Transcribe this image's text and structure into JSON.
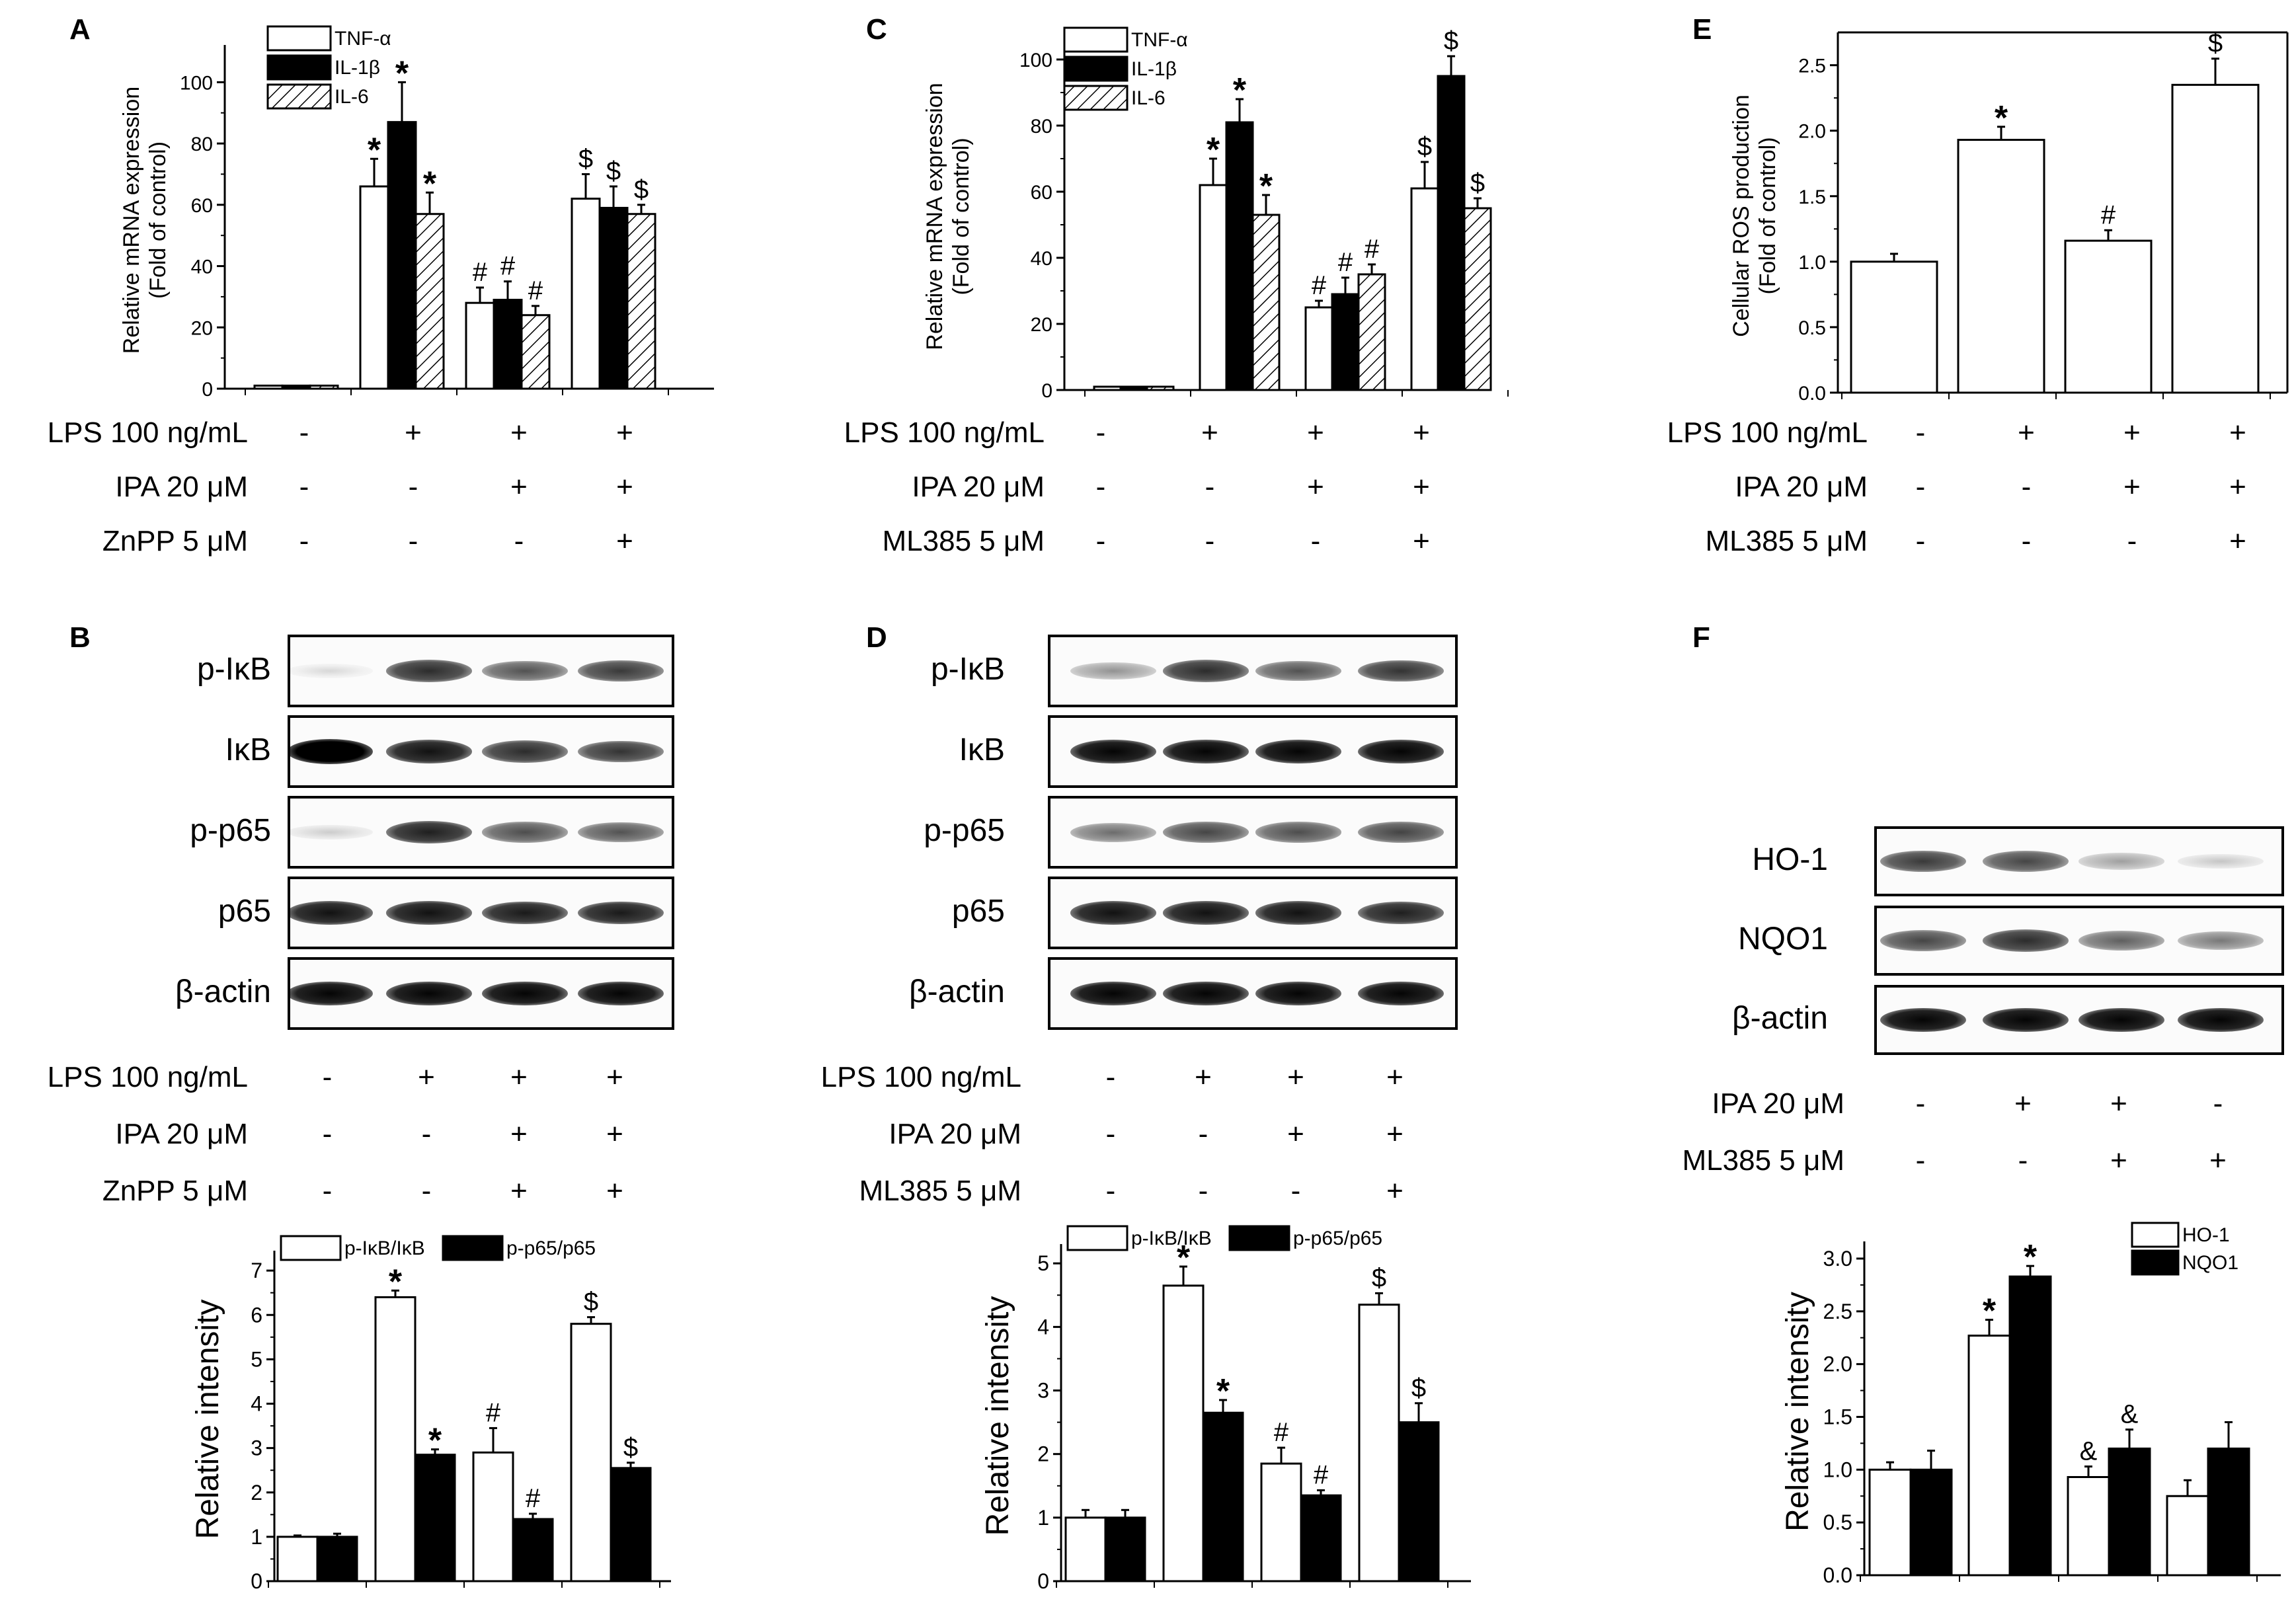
{
  "figure": {
    "panels": {
      "A": {
        "label": "A"
      },
      "B": {
        "label": "B"
      },
      "C": {
        "label": "C"
      },
      "D": {
        "label": "D"
      },
      "E": {
        "label": "E"
      },
      "F": {
        "label": "F"
      }
    }
  },
  "treatments": {
    "A": {
      "rows": [
        {
          "label": "LPS 100 ng/mL",
          "signs": [
            "-",
            "+",
            "+",
            "+"
          ]
        },
        {
          "label": "IPA 20 μM",
          "signs": [
            "-",
            "-",
            "+",
            "+"
          ]
        },
        {
          "label": "ZnPP 5 μM",
          "signs": [
            "-",
            "-",
            "-",
            "+"
          ]
        }
      ]
    },
    "C": {
      "rows": [
        {
          "label": "LPS 100 ng/mL",
          "signs": [
            "-",
            "+",
            "+",
            "+"
          ]
        },
        {
          "label": "IPA 20 μM",
          "signs": [
            "-",
            "-",
            "+",
            "+"
          ]
        },
        {
          "label": "ML385 5 μM",
          "signs": [
            "-",
            "-",
            "-",
            "+"
          ]
        }
      ]
    },
    "E": {
      "rows": [
        {
          "label": "LPS 100 ng/mL",
          "signs": [
            "-",
            "+",
            "+",
            "+"
          ]
        },
        {
          "label": "IPA 20 μM",
          "signs": [
            "-",
            "-",
            "+",
            "+"
          ]
        },
        {
          "label": "ML385 5 μM",
          "signs": [
            "-",
            "-",
            "-",
            "+"
          ]
        }
      ]
    },
    "B": {
      "rows": [
        {
          "label": "LPS 100 ng/mL",
          "signs": [
            "-",
            "+",
            "+",
            "+"
          ]
        },
        {
          "label": "IPA 20 μM",
          "signs": [
            "-",
            "-",
            "+",
            "+"
          ]
        },
        {
          "label": "ZnPP 5 μM",
          "signs": [
            "-",
            "-",
            "+",
            "+"
          ]
        }
      ]
    },
    "D": {
      "rows": [
        {
          "label": "LPS 100 ng/mL",
          "signs": [
            "-",
            "+",
            "+",
            "+"
          ]
        },
        {
          "label": "IPA 20 μM",
          "signs": [
            "-",
            "-",
            "+",
            "+"
          ]
        },
        {
          "label": "ML385 5 μM",
          "signs": [
            "-",
            "-",
            "-",
            "+"
          ]
        }
      ]
    },
    "F": {
      "rows": [
        {
          "label": "IPA 20 μM",
          "signs": [
            "-",
            "+",
            "+",
            "-"
          ]
        },
        {
          "label": "ML385 5 μM",
          "signs": [
            "-",
            "-",
            "+",
            "+"
          ]
        }
      ]
    }
  },
  "blots": {
    "B": {
      "rows": [
        {
          "label": "p-IκB",
          "intensity": [
            0.08,
            0.75,
            0.6,
            0.7
          ]
        },
        {
          "label": "IκB",
          "intensity": [
            1.0,
            0.85,
            0.75,
            0.72
          ]
        },
        {
          "label": "p-p65",
          "intensity": [
            0.12,
            0.8,
            0.62,
            0.6
          ]
        },
        {
          "label": "p65",
          "intensity": [
            0.85,
            0.85,
            0.82,
            0.82
          ]
        },
        {
          "label": "β-actin",
          "intensity": [
            0.9,
            0.9,
            0.9,
            0.9
          ]
        }
      ]
    },
    "D": {
      "rows": [
        {
          "label": "p-IκB",
          "intensity": [
            0.35,
            0.75,
            0.6,
            0.72
          ]
        },
        {
          "label": "IκB",
          "intensity": [
            0.9,
            0.9,
            0.9,
            0.9
          ]
        },
        {
          "label": "p-p65",
          "intensity": [
            0.5,
            0.65,
            0.62,
            0.66
          ]
        },
        {
          "label": "p65",
          "intensity": [
            0.85,
            0.85,
            0.85,
            0.8
          ]
        },
        {
          "label": "β-actin",
          "intensity": [
            0.9,
            0.9,
            0.9,
            0.9
          ]
        }
      ]
    },
    "F": {
      "rows": [
        {
          "label": "HO-1",
          "intensity": [
            0.7,
            0.65,
            0.3,
            0.15
          ]
        },
        {
          "label": "NQO1",
          "intensity": [
            0.65,
            0.75,
            0.55,
            0.45
          ]
        },
        {
          "label": "β-actin",
          "intensity": [
            0.9,
            0.9,
            0.9,
            0.9
          ]
        }
      ]
    }
  },
  "chart_data": [
    {
      "panel": "A",
      "type": "bar",
      "title": "",
      "ylabel": "Relative mRNA expression (Fold of control)",
      "ylabel_lines": [
        "Relative mRNA expression",
        "(Fold of control)"
      ],
      "ylim": [
        0,
        110
      ],
      "yticks": [
        0,
        20,
        40,
        60,
        80,
        100
      ],
      "legend": {
        "position": "top-left"
      },
      "groups": [
        "1",
        "2",
        "3",
        "4"
      ],
      "series": [
        {
          "name": "TNF-α",
          "pattern": "white",
          "values": [
            1,
            66,
            28,
            62
          ],
          "errors": [
            0,
            9,
            5,
            8
          ],
          "marks": [
            "",
            "*",
            "#",
            "$"
          ]
        },
        {
          "name": "IL-1β",
          "pattern": "black",
          "values": [
            1,
            87,
            29,
            59
          ],
          "errors": [
            0,
            13,
            6,
            7
          ],
          "marks": [
            "",
            "*",
            "#",
            "$"
          ]
        },
        {
          "name": "IL-6",
          "pattern": "hatch",
          "values": [
            1,
            57,
            24,
            57
          ],
          "errors": [
            0,
            7,
            3,
            3
          ],
          "marks": [
            "",
            "*",
            "#",
            "$"
          ]
        }
      ]
    },
    {
      "panel": "C",
      "type": "bar",
      "title": "",
      "ylabel": "Relative mRNA expression (Fold of control)",
      "ylabel_lines": [
        "Relative mRNA expression",
        "(Fold of control)"
      ],
      "ylim": [
        0,
        105
      ],
      "yticks": [
        0,
        20,
        40,
        60,
        80,
        100
      ],
      "legend": {
        "position": "top-left"
      },
      "groups": [
        "1",
        "2",
        "3",
        "4"
      ],
      "series": [
        {
          "name": "TNF-α",
          "pattern": "white",
          "values": [
            1,
            62,
            25,
            61
          ],
          "errors": [
            0,
            8,
            2,
            8
          ],
          "marks": [
            "",
            "*",
            "#",
            "$"
          ]
        },
        {
          "name": "IL-1β",
          "pattern": "black",
          "values": [
            1,
            81,
            29,
            95
          ],
          "errors": [
            0,
            7,
            5,
            6
          ],
          "marks": [
            "",
            "*",
            "#",
            "$"
          ]
        },
        {
          "name": "IL-6",
          "pattern": "hatch",
          "values": [
            1,
            53,
            35,
            55
          ],
          "errors": [
            0,
            6,
            3,
            3
          ],
          "marks": [
            "",
            "*",
            "#",
            "$"
          ]
        }
      ]
    },
    {
      "panel": "E",
      "type": "bar",
      "title": "",
      "ylabel": "Cellular ROS production (Fold of control)",
      "ylabel_lines": [
        "Cellular ROS production",
        "(Fold of control)"
      ],
      "ylim": [
        0,
        2.7
      ],
      "yticks": [
        0.0,
        0.5,
        1.0,
        1.5,
        2.0,
        2.5
      ],
      "legend": null,
      "groups": [
        "1",
        "2",
        "3",
        "4"
      ],
      "series": [
        {
          "name": "ROS",
          "pattern": "white",
          "values": [
            1.0,
            1.93,
            1.16,
            2.35
          ],
          "errors": [
            0.06,
            0.1,
            0.08,
            0.2
          ],
          "marks": [
            "",
            "*",
            "#",
            "$"
          ]
        }
      ]
    },
    {
      "panel": "B",
      "type": "bar",
      "title": "",
      "ylabel": "Relative intensity",
      "ylabel_lines": [
        "Relative intensity"
      ],
      "ylim": [
        0,
        7.3
      ],
      "yticks": [
        0,
        1,
        2,
        3,
        4,
        5,
        6,
        7
      ],
      "legend": {
        "position": "top"
      },
      "groups": [
        "1",
        "2",
        "3",
        "4"
      ],
      "series": [
        {
          "name": "p-IκB/IκB",
          "pattern": "white",
          "values": [
            1.0,
            6.4,
            2.9,
            5.8
          ],
          "errors": [
            0.03,
            0.15,
            0.55,
            0.15
          ],
          "marks": [
            "",
            "*",
            "#",
            "$"
          ]
        },
        {
          "name": "p-p65/p65",
          "pattern": "black",
          "values": [
            1.0,
            2.85,
            1.4,
            2.55
          ],
          "errors": [
            0.07,
            0.12,
            0.12,
            0.12
          ],
          "marks": [
            "",
            "*",
            "#",
            "$"
          ]
        }
      ]
    },
    {
      "panel": "D",
      "type": "bar",
      "title": "",
      "ylabel": "Relative intensity",
      "ylabel_lines": [
        "Relative intensity"
      ],
      "ylim": [
        0,
        5.2
      ],
      "yticks": [
        0,
        1,
        2,
        3,
        4,
        5
      ],
      "legend": {
        "position": "top"
      },
      "groups": [
        "1",
        "2",
        "3",
        "4"
      ],
      "series": [
        {
          "name": "p-IκB/IκB",
          "pattern": "white",
          "values": [
            1.0,
            4.65,
            1.85,
            4.35
          ],
          "errors": [
            0.12,
            0.3,
            0.25,
            0.18
          ],
          "marks": [
            "",
            "*",
            "#",
            "$"
          ]
        },
        {
          "name": "p-p65/p65",
          "pattern": "black",
          "values": [
            1.0,
            2.65,
            1.35,
            2.5
          ],
          "errors": [
            0.12,
            0.2,
            0.08,
            0.3
          ],
          "marks": [
            "",
            "*",
            "#",
            "$"
          ]
        }
      ]
    },
    {
      "panel": "F",
      "type": "bar",
      "title": "",
      "ylabel": "Relative intensity",
      "ylabel_lines": [
        "Relative intensity"
      ],
      "ylim": [
        0,
        3.1
      ],
      "yticks": [
        0.0,
        0.5,
        1.0,
        1.5,
        2.0,
        2.5,
        3.0
      ],
      "legend": {
        "position": "top-right"
      },
      "groups": [
        "1",
        "2",
        "3",
        "4"
      ],
      "series": [
        {
          "name": "HO-1",
          "pattern": "white",
          "values": [
            1.0,
            2.27,
            0.93,
            0.75
          ],
          "errors": [
            0.07,
            0.15,
            0.1,
            0.15
          ],
          "marks": [
            "",
            "*",
            "&",
            ""
          ]
        },
        {
          "name": "NQO1",
          "pattern": "black",
          "values": [
            1.0,
            2.83,
            1.2,
            1.2
          ],
          "errors": [
            0.18,
            0.1,
            0.18,
            0.25
          ],
          "marks": [
            "",
            "*",
            "&",
            ""
          ]
        }
      ]
    }
  ]
}
